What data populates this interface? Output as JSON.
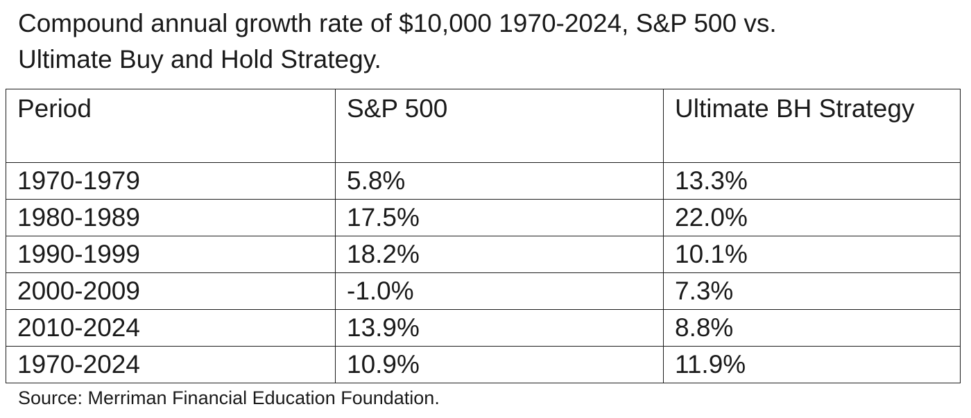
{
  "title": "Compound annual growth rate of $10,000 1970-2024, S&P 500 vs. Ultimate Buy and Hold Strategy.",
  "table": {
    "headers": [
      "Period",
      "S&P 500",
      "Ultimate BH Strategy"
    ],
    "rows": [
      [
        "1970-1979",
        "5.8%",
        "13.3%"
      ],
      [
        "1980-1989",
        "17.5%",
        "22.0%"
      ],
      [
        "1990-1999",
        "18.2%",
        "10.1%"
      ],
      [
        "2000-2009",
        "-1.0%",
        "7.3%"
      ],
      [
        "2010-2024",
        "13.9%",
        "8.8%"
      ],
      [
        "1970-2024",
        "10.9%",
        "11.9%"
      ]
    ]
  },
  "source": "Source: Merriman Financial Education Foundation."
}
